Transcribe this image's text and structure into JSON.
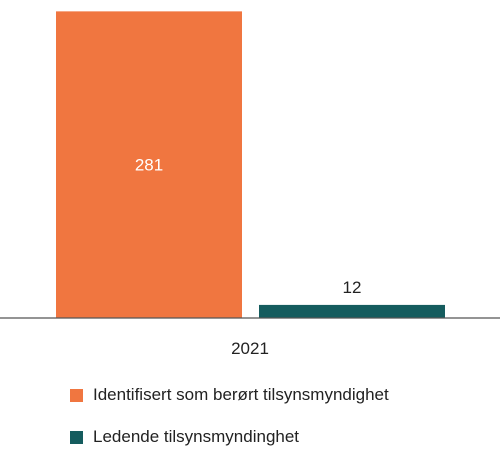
{
  "chart_data": {
    "type": "bar",
    "categories": [
      "2021"
    ],
    "series": [
      {
        "name": "Identifisert som berørt tilsynsmyndighet",
        "values": [
          281
        ],
        "color": "#F07640"
      },
      {
        "name": "Ledende tilsynsmyndinghet",
        "values": [
          12
        ],
        "color": "#155C5E"
      }
    ],
    "data_labels": [
      "281",
      "12"
    ],
    "ylim": [
      0,
      285
    ],
    "grid": false,
    "legend_position": "bottom-left"
  }
}
